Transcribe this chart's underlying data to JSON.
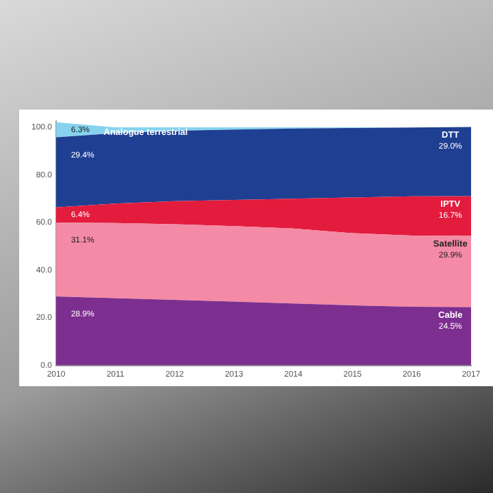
{
  "chart_data": {
    "type": "area",
    "stacked": true,
    "x": [
      2010,
      2011,
      2012,
      2013,
      2014,
      2015,
      2016,
      2017
    ],
    "xlim": [
      2010,
      2017
    ],
    "xticks": [
      2010,
      2011,
      2012,
      2013,
      2014,
      2015,
      2016,
      2017
    ],
    "ylim": [
      0,
      102.5
    ],
    "yticks": [
      {
        "value": 0,
        "label": "0.0"
      },
      {
        "value": 20,
        "label": "20.0"
      },
      {
        "value": 40,
        "label": "40.0"
      },
      {
        "value": 60,
        "label": "60.0"
      },
      {
        "value": 80,
        "label": "80.0"
      },
      {
        "value": 100,
        "label": "100.0"
      }
    ],
    "grid": false,
    "legend": false,
    "series": [
      {
        "name": "Cable",
        "color": "#7d2f8f",
        "values": [
          28.9,
          28.2,
          27.5,
          26.8,
          26.0,
          25.2,
          24.6,
          24.5
        ],
        "value_labels": [
          "28.9%",
          null,
          null,
          null,
          null,
          null,
          null,
          "24.5%"
        ]
      },
      {
        "name": "Satellite",
        "color": "#f48aa6",
        "values": [
          31.1,
          31.6,
          31.8,
          31.7,
          31.5,
          30.3,
          29.9,
          29.9
        ],
        "value_labels": [
          "31.1%",
          null,
          null,
          null,
          null,
          null,
          null,
          "29.9%"
        ]
      },
      {
        "name": "IPTV",
        "color": "#e31c3d",
        "values": [
          6.4,
          8.2,
          9.7,
          11.0,
          12.5,
          15.0,
          16.5,
          16.7
        ],
        "value_labels": [
          "6.4%",
          null,
          null,
          null,
          null,
          null,
          null,
          "16.7%"
        ]
      },
      {
        "name": "DTT",
        "color": "#1f3f93",
        "values": [
          29.4,
          29.5,
          29.5,
          29.5,
          29.5,
          29.2,
          28.9,
          29.0
        ],
        "value_labels": [
          "29.4%",
          null,
          null,
          null,
          null,
          null,
          null,
          "29.0%"
        ]
      },
      {
        "name": "Analogue terrestrial",
        "color": "#87d3ef",
        "values": [
          6.3,
          2.5,
          1.5,
          1.0,
          0.5,
          0.3,
          0.1,
          0
        ],
        "value_labels": [
          "6.3%",
          null,
          null,
          null,
          null,
          null,
          null,
          null
        ]
      }
    ]
  }
}
